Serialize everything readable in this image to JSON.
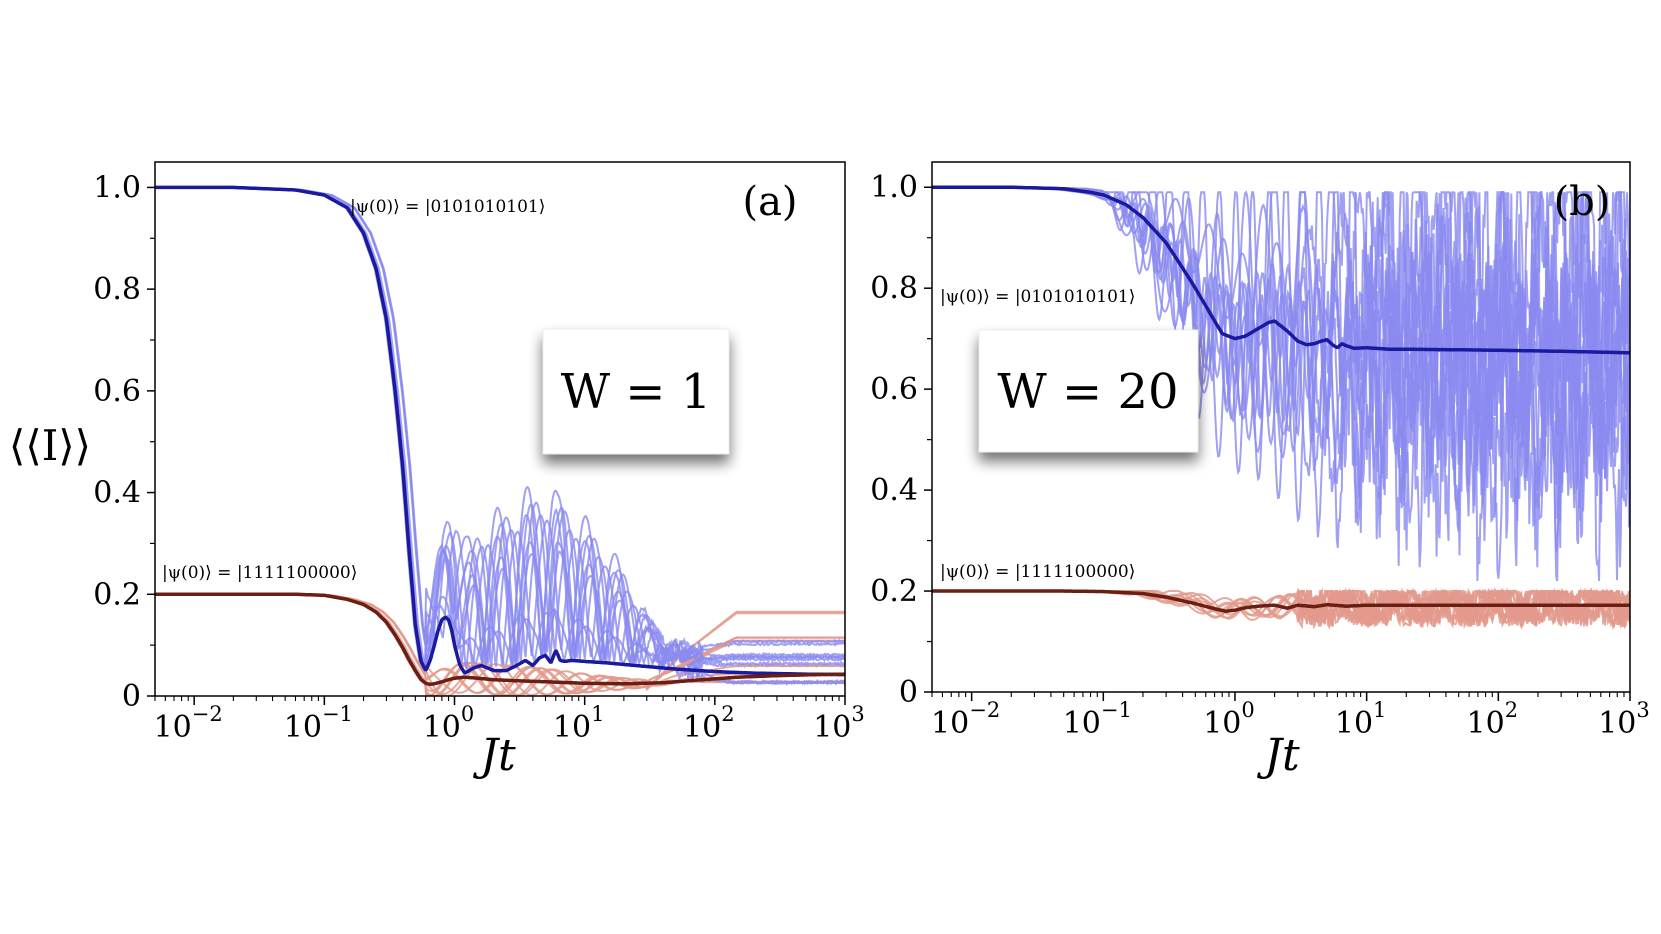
{
  "figure": {
    "ylabel": "⟨⟨I⟩⟩",
    "xlabel": "Jt",
    "colors": {
      "blue_mean": "#1a1a9e",
      "blue_samples": "#8a8af0",
      "red_mean": "#6b1f14",
      "red_samples": "#e39a8c",
      "frame": "#000000"
    }
  },
  "chart_data": [
    {
      "id": "a",
      "type": "line",
      "panel_label": "(a)",
      "box_label": "W = 1",
      "disorder_W": 1,
      "xscale": "log",
      "xlim": [
        0.005,
        1000
      ],
      "ylim": [
        0,
        1.05
      ],
      "xticks": [
        0.01,
        0.1,
        1,
        10,
        100,
        1000
      ],
      "xtick_labels": [
        {
          "base": "10",
          "exp": "−2"
        },
        {
          "base": "10",
          "exp": "−1"
        },
        {
          "base": "10",
          "exp": "0"
        },
        {
          "base": "10",
          "exp": "1"
        },
        {
          "base": "10",
          "exp": "2"
        },
        {
          "base": "10",
          "exp": "3"
        }
      ],
      "yticks": [
        0,
        0.2,
        0.4,
        0.6,
        0.8,
        1.0
      ],
      "ytick_labels": [
        "0",
        "0.2",
        "0.4",
        "0.6",
        "0.8",
        "1.0"
      ],
      "ylabel": "⟨⟨I⟩⟩",
      "xlabel": "Jt",
      "annotations": [
        {
          "text": "|ψ(0)⟩ = |0101010101⟩",
          "near": "blue curve, upper center"
        },
        {
          "text": "|ψ(0)⟩ = |1111100000⟩",
          "near": "red curve, left"
        }
      ],
      "series": [
        {
          "name": "|0101010101⟩ average",
          "role": "mean",
          "color": "#1a1a9e",
          "x": [
            0.005,
            0.02,
            0.06,
            0.1,
            0.15,
            0.2,
            0.25,
            0.3,
            0.35,
            0.4,
            0.45,
            0.5,
            0.55,
            0.6,
            0.65,
            0.7,
            0.75,
            0.8,
            0.85,
            0.9,
            0.95,
            1.0,
            1.1,
            1.2,
            1.4,
            1.6,
            1.8,
            2.0,
            2.5,
            3.0,
            3.5,
            4.0,
            4.5,
            5.0,
            5.5,
            6.0,
            6.5,
            7.0,
            8.0,
            10,
            15,
            20,
            30,
            50,
            100,
            200,
            500,
            1000
          ],
          "values": [
            1.0,
            1.0,
            0.995,
            0.985,
            0.96,
            0.91,
            0.84,
            0.74,
            0.6,
            0.45,
            0.28,
            0.14,
            0.07,
            0.05,
            0.07,
            0.1,
            0.13,
            0.15,
            0.155,
            0.15,
            0.13,
            0.1,
            0.06,
            0.045,
            0.055,
            0.06,
            0.055,
            0.05,
            0.05,
            0.06,
            0.07,
            0.06,
            0.075,
            0.08,
            0.065,
            0.09,
            0.07,
            0.068,
            0.07,
            0.068,
            0.065,
            0.062,
            0.058,
            0.053,
            0.048,
            0.045,
            0.043,
            0.042
          ]
        },
        {
          "name": "|1111100000⟩ average",
          "role": "mean",
          "color": "#6b1f14",
          "x": [
            0.005,
            0.02,
            0.06,
            0.1,
            0.15,
            0.2,
            0.25,
            0.3,
            0.35,
            0.4,
            0.45,
            0.5,
            0.55,
            0.6,
            0.65,
            0.7,
            0.8,
            0.9,
            1.0,
            1.2,
            1.5,
            2.0,
            3.0,
            5.0,
            10,
            20,
            40,
            80,
            150,
            300,
            600,
            1000
          ],
          "values": [
            0.2,
            0.2,
            0.2,
            0.198,
            0.19,
            0.18,
            0.165,
            0.145,
            0.12,
            0.095,
            0.07,
            0.05,
            0.033,
            0.025,
            0.023,
            0.024,
            0.028,
            0.032,
            0.035,
            0.037,
            0.035,
            0.032,
            0.03,
            0.028,
            0.025,
            0.024,
            0.026,
            0.032,
            0.037,
            0.04,
            0.042,
            0.043
          ]
        }
      ]
    },
    {
      "id": "b",
      "type": "line",
      "panel_label": "(b)",
      "box_label": "W = 20",
      "disorder_W": 20,
      "xscale": "log",
      "xlim": [
        0.005,
        1000
      ],
      "ylim": [
        0,
        1.05
      ],
      "xticks": [
        0.01,
        0.1,
        1,
        10,
        100,
        1000
      ],
      "xtick_labels": [
        {
          "base": "10",
          "exp": "−2"
        },
        {
          "base": "10",
          "exp": "−1"
        },
        {
          "base": "10",
          "exp": "0"
        },
        {
          "base": "10",
          "exp": "1"
        },
        {
          "base": "10",
          "exp": "2"
        },
        {
          "base": "10",
          "exp": "3"
        }
      ],
      "yticks": [
        0,
        0.2,
        0.4,
        0.6,
        0.8,
        1.0
      ],
      "ytick_labels": [
        "0",
        "0.2",
        "0.4",
        "0.6",
        "0.8",
        "1.0"
      ],
      "xlabel": "Jt",
      "annotations": [
        {
          "text": "|ψ(0)⟩ = |0101010101⟩",
          "near": "blue curve, left"
        },
        {
          "text": "|ψ(0)⟩ = |1111100000⟩",
          "near": "red curve, left"
        }
      ],
      "series": [
        {
          "name": "|0101010101⟩ average",
          "role": "mean",
          "color": "#1a1a9e",
          "x": [
            0.005,
            0.02,
            0.05,
            0.08,
            0.1,
            0.15,
            0.2,
            0.3,
            0.4,
            0.5,
            0.6,
            0.7,
            0.8,
            1.0,
            1.2,
            1.5,
            1.8,
            2.0,
            2.5,
            3.0,
            3.5,
            4.0,
            4.5,
            5.0,
            5.5,
            6.0,
            6.5,
            7.0,
            8.0,
            10,
            15,
            20,
            50,
            100,
            300,
            1000
          ],
          "values": [
            1.0,
            1.0,
            0.997,
            0.99,
            0.985,
            0.965,
            0.94,
            0.89,
            0.84,
            0.8,
            0.765,
            0.735,
            0.71,
            0.7,
            0.705,
            0.72,
            0.732,
            0.735,
            0.715,
            0.695,
            0.688,
            0.69,
            0.695,
            0.698,
            0.688,
            0.682,
            0.69,
            0.686,
            0.681,
            0.682,
            0.679,
            0.679,
            0.678,
            0.677,
            0.675,
            0.672
          ]
        },
        {
          "name": "|1111100000⟩ average",
          "role": "mean",
          "color": "#6b1f14",
          "x": [
            0.005,
            0.02,
            0.05,
            0.1,
            0.2,
            0.3,
            0.5,
            0.7,
            0.85,
            1.0,
            1.2,
            1.5,
            2.0,
            2.5,
            3.0,
            4.0,
            5.0,
            7.0,
            10,
            20,
            50,
            100,
            300,
            1000
          ],
          "values": [
            0.2,
            0.2,
            0.2,
            0.199,
            0.195,
            0.188,
            0.175,
            0.165,
            0.16,
            0.162,
            0.167,
            0.17,
            0.172,
            0.166,
            0.172,
            0.169,
            0.173,
            0.17,
            0.172,
            0.172,
            0.172,
            0.172,
            0.172,
            0.172
          ]
        }
      ]
    }
  ]
}
